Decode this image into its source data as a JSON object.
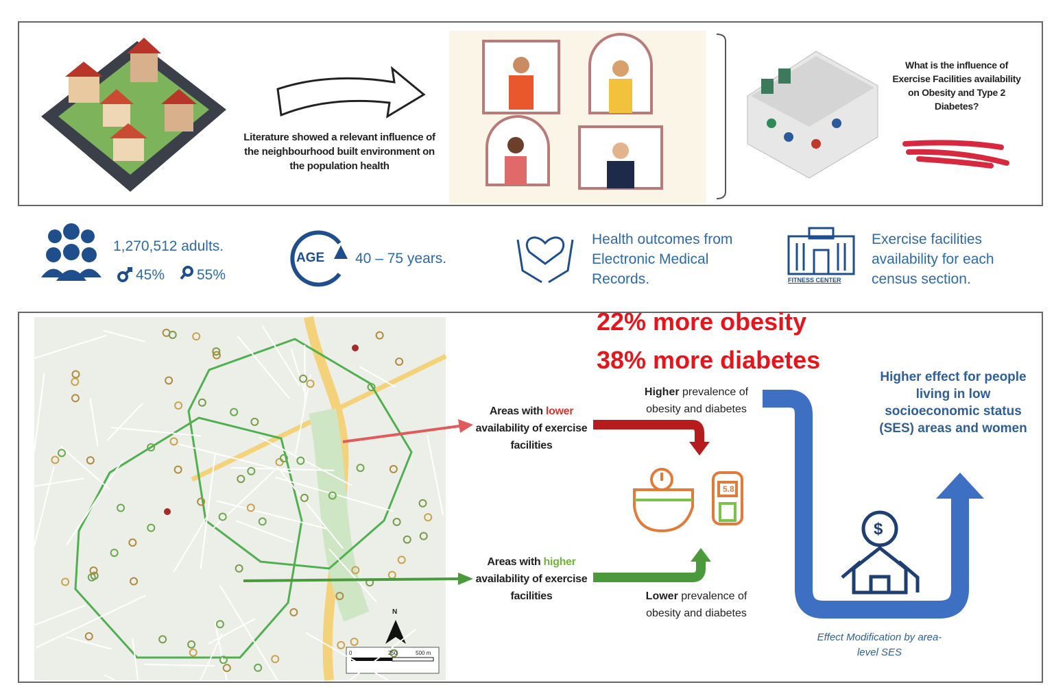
{
  "intro": {
    "literature": "Literature showed a relevant influence of the neighbourhood built environment on the population health",
    "question": "What is the influence of Exercise Facilities availability on Obesity and Type 2 Diabetes?"
  },
  "stats": {
    "population": "1,270,512 adults.",
    "male": "45%",
    "female": "55%",
    "age_badge": "AGE",
    "age_range": "40 – 75 years.",
    "outcomes": "Health outcomes from Electronic Medical Records.",
    "fitness_label": "FITNESS CENTER",
    "facilities": "Exercise facilities availability for each census section."
  },
  "results": {
    "obesity_increase": "22% more obesity",
    "diabetes_increase": "38% more diabetes",
    "higher_prevalence": {
      "bold": "Higher",
      "rest": "prevalence of obesity and diabetes"
    },
    "lower_areas": {
      "prefix": "Areas with",
      "highlight": "lower",
      "suffix": "availability of exercise facilities"
    },
    "higher_areas": {
      "prefix": "Areas with",
      "highlight": "higher",
      "suffix": "availability of exercise facilities"
    },
    "lower_prevalence": {
      "bold": "Lower",
      "rest": "prevalence of obesity and diabetes"
    },
    "glucometer": "5.8",
    "coin": "$",
    "effect": "Higher effect for people living in low socioeconomic status (SES) areas and women",
    "modification": "Effect Modification by area-level SES",
    "compass": "N",
    "scale": [
      "0",
      "250",
      "500 m"
    ]
  }
}
